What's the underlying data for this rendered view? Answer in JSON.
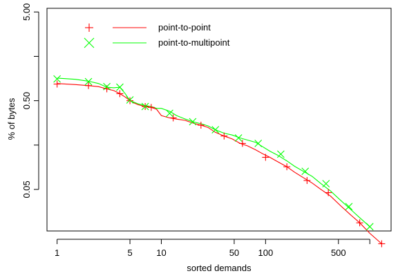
{
  "chart_data": {
    "type": "line",
    "xlabel": "sorted demands",
    "ylabel": "% of bytes",
    "x_scale": "log",
    "y_scale": "log",
    "xlim": [
      0.8,
      1600
    ],
    "ylim": [
      0.017,
      5.5
    ],
    "x_ticks": [
      {
        "value": 1,
        "label": "1"
      },
      {
        "value": 5,
        "label": "5"
      },
      {
        "value": 10,
        "label": "10"
      },
      {
        "value": 50,
        "label": "50"
      },
      {
        "value": 100,
        "label": "100"
      },
      {
        "value": 500,
        "label": "500"
      }
    ],
    "x_minor_ticks": [
      1000
    ],
    "y_ticks": [
      {
        "value": 0.05,
        "label": "0.05"
      },
      {
        "value": 0.5,
        "label": "0.50"
      },
      {
        "value": 5,
        "label": "5.00"
      }
    ],
    "y_minor_ticks": [
      0.158,
      1.58
    ],
    "grid": false,
    "legend_position": "top-left",
    "series": [
      {
        "name": "point-to-point",
        "color": "#ff0000",
        "marker": "plus",
        "x": [
          1,
          1.5,
          2,
          2.5,
          3,
          3.5,
          4,
          4.5,
          5,
          5.5,
          6,
          7,
          8,
          9,
          10,
          12,
          14,
          17,
          20,
          24,
          28,
          33,
          40,
          48,
          57,
          67,
          80,
          95,
          110,
          130,
          160,
          190,
          230,
          280,
          340,
          420,
          520,
          650,
          800,
          1000,
          1300
        ],
        "y": [
          0.78,
          0.76,
          0.74,
          0.72,
          0.68,
          0.65,
          0.6,
          0.55,
          0.5,
          0.47,
          0.45,
          0.43,
          0.42,
          0.4,
          0.34,
          0.32,
          0.31,
          0.3,
          0.28,
          0.265,
          0.25,
          0.22,
          0.2,
          0.185,
          0.165,
          0.155,
          0.14,
          0.125,
          0.115,
          0.103,
          0.09,
          0.078,
          0.068,
          0.059,
          0.05,
          0.042,
          0.033,
          0.026,
          0.021,
          0.016,
          0.0122
        ],
        "marker_x": [
          1,
          2,
          3,
          4,
          5,
          7,
          8,
          13,
          24,
          40,
          60,
          100,
          160,
          250,
          400,
          800,
          1300
        ],
        "marker_y": [
          0.77,
          0.74,
          0.68,
          0.6,
          0.5,
          0.43,
          0.42,
          0.32,
          0.265,
          0.2,
          0.165,
          0.115,
          0.09,
          0.063,
          0.046,
          0.021,
          0.0122
        ]
      },
      {
        "name": "point-to-multipoint",
        "color": "#00ff00",
        "marker": "cross",
        "x": [
          1,
          1.5,
          2,
          2.5,
          3,
          3.5,
          4,
          4.5,
          5,
          5.5,
          6,
          7,
          8,
          9,
          10,
          12,
          14,
          17,
          20,
          24,
          28,
          33,
          40,
          48,
          57,
          67,
          80,
          95,
          110,
          130,
          160,
          190,
          230,
          280,
          340,
          420,
          520,
          650,
          800,
          1000
        ],
        "y": [
          0.9,
          0.87,
          0.83,
          0.78,
          0.71,
          0.7,
          0.71,
          0.6,
          0.5,
          0.48,
          0.46,
          0.44,
          0.43,
          0.41,
          0.41,
          0.38,
          0.34,
          0.31,
          0.29,
          0.275,
          0.26,
          0.235,
          0.215,
          0.205,
          0.19,
          0.18,
          0.17,
          0.15,
          0.135,
          0.122,
          0.105,
          0.091,
          0.08,
          0.07,
          0.058,
          0.048,
          0.038,
          0.03,
          0.024,
          0.019
        ],
        "marker_x": [
          1,
          2,
          3,
          4,
          5,
          7,
          12,
          20,
          33,
          55,
          85,
          140,
          240,
          380,
          630,
          1000
        ],
        "marker_y": [
          0.88,
          0.82,
          0.72,
          0.71,
          0.51,
          0.43,
          0.36,
          0.29,
          0.235,
          0.19,
          0.165,
          0.125,
          0.08,
          0.058,
          0.032,
          0.019
        ]
      }
    ]
  }
}
